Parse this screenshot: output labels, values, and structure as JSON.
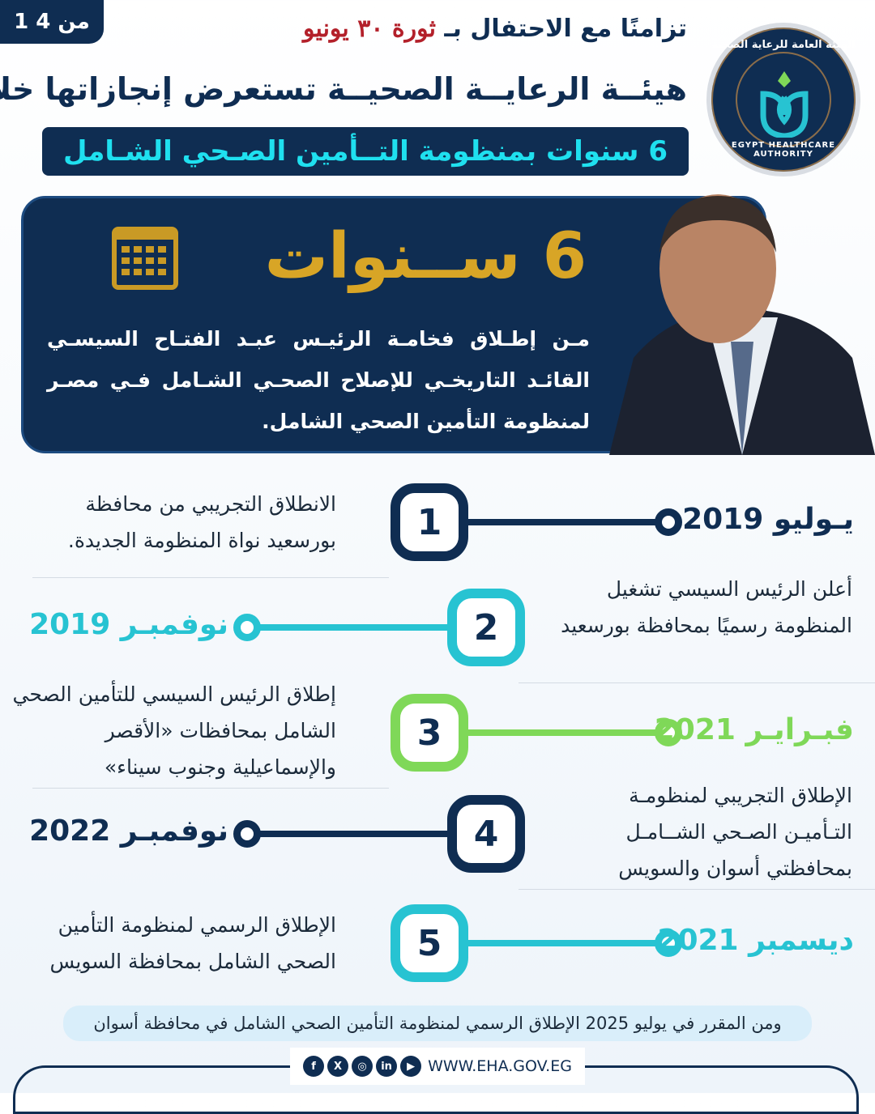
{
  "page_indicator": "1 من 4",
  "logo": {
    "arabic": "الهيئة العامة للرعاية الصحية",
    "english": "EGYPT HEALTHCARE AUTHORITY"
  },
  "header": {
    "line1": "تزامنًا مع الاحتفال بـ",
    "revolution": "ثورة ٣٠ يونيو",
    "line2": "هيئــة الرعايــة الصحيــة تستعرض إنجازاتها خلال",
    "subtitle": "6 سنوات بمنظومة التــأمين الصـحي الشـامل"
  },
  "hero": {
    "years": "6 ســنوات",
    "text": "مـن إطـلاق فخامـة الرئيـس عبـد الفتـاح السيسـي القائـد التاريخـي للإصلاح الصحـي الشـامل فـي مصـر لمنظومة التأمين الصحي الشامل."
  },
  "colors": {
    "navy": "#0f2d52",
    "teal": "#27c3d2",
    "green": "#7fd858",
    "gold": "#d8a526"
  },
  "timeline": [
    {
      "number": "1",
      "date": "يـوليو 2019",
      "text": "الانطلاق التجريبي من محافظة بورسعيد نواة المنظومة الجديدة.",
      "color": "#0f2d52"
    },
    {
      "number": "2",
      "date": "نوفمبـر 2019",
      "text": "أعلن الرئيس السيسي تشغيل المنظومة رسميًا بمحافظة بورسعيد",
      "color": "#27c3d2"
    },
    {
      "number": "3",
      "date": "فبـرايـر 2021",
      "text": "إطلاق الرئيس السيسي للتأمين الصحي الشامل بمحافظات «الأقصر والإسماعيلية وجنوب سيناء»",
      "color": "#7fd858"
    },
    {
      "number": "4",
      "date": "نوفمبـر 2022",
      "text": "الإطلاق التجريبي لمنظومـة التـأميـن الصـحي الشــامـل بمحافظتي أسوان والسويس",
      "color": "#0f2d52"
    },
    {
      "number": "5",
      "date": "ديسمبر 2021",
      "text": "الإطلاق الرسمي لمنظومة التأمين الصحي الشامل بمحافظة السويس",
      "color": "#27c3d2"
    }
  ],
  "note": "ومن المقرر في يوليو 2025 الإطلاق الرسمي لمنظومة التأمين الصحي الشامل في محافظة أسوان",
  "footer": {
    "social": [
      {
        "icon": "facebook-icon",
        "glyph": "f"
      },
      {
        "icon": "x-icon",
        "glyph": "X"
      },
      {
        "icon": "instagram-icon",
        "glyph": "◎"
      },
      {
        "icon": "linkedin-icon",
        "glyph": "in"
      },
      {
        "icon": "youtube-icon",
        "glyph": "▶"
      }
    ],
    "url": "WWW.EHA.GOV.EG"
  }
}
